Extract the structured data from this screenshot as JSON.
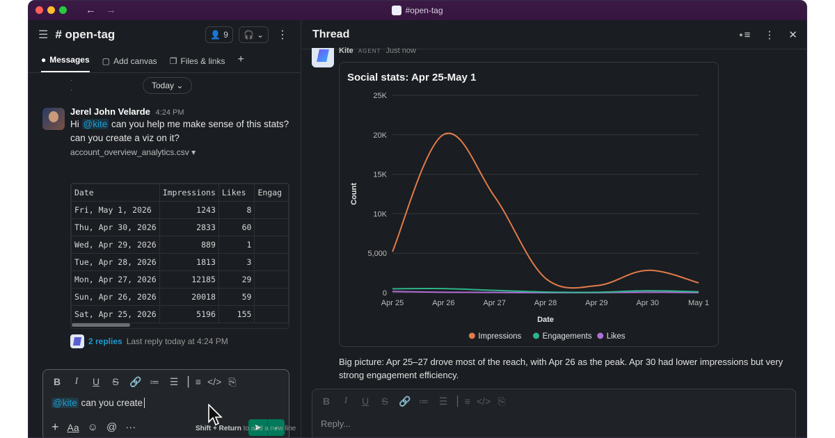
{
  "window": {
    "title": "#open-tag"
  },
  "channel": {
    "name": "# open-tag",
    "member_count": "9",
    "tabs": [
      {
        "label": "Messages"
      },
      {
        "label": "Add canvas"
      },
      {
        "label": "Files & links"
      }
    ],
    "date_divider": "Today"
  },
  "message": {
    "author": "Jerel John Velarde",
    "time": "4:24 PM",
    "text_before": "Hi ",
    "mention": "@kite",
    "text_after": " can you help me make sense of this stats? can you create a viz on it?",
    "file_name": "account_overview_analytics.csv",
    "table": {
      "headers": [
        "Date",
        "Impressions",
        "Likes",
        "Engag"
      ],
      "rows": [
        [
          "Fri, May 1, 2026",
          "1243",
          "8",
          ""
        ],
        [
          "Thu, Apr 30, 2026",
          "2833",
          "60",
          ""
        ],
        [
          "Wed, Apr 29, 2026",
          "889",
          "1",
          ""
        ],
        [
          "Tue, Apr 28, 2026",
          "1813",
          "3",
          ""
        ],
        [
          "Mon, Apr 27, 2026",
          "12185",
          "29",
          ""
        ],
        [
          "Sun, Apr 26, 2026",
          "20018",
          "59",
          ""
        ],
        [
          "Sat, Apr 25, 2026",
          "5196",
          "155",
          ""
        ]
      ]
    },
    "replies_label": "2 replies",
    "last_reply": "Last reply today at 4:24 PM"
  },
  "composer": {
    "mention": "@kite",
    "text": " can you create",
    "hint_keys": "Shift + Return",
    "hint_text": " to add a new line"
  },
  "thread": {
    "title": "Thread",
    "author": "Kite",
    "badge": "AGENT",
    "time": "Just now",
    "summary": "Big picture: Apr 25–27 drove most of the reach, with Apr 26 as the peak. Apr 30 had lower impressions but very strong engagement efficiency.",
    "reply_placeholder": "Reply..."
  },
  "chart_data": {
    "type": "line",
    "title": "Social stats: Apr 25-May 1",
    "xlabel": "Date",
    "ylabel": "Count",
    "categories": [
      "Apr 25",
      "Apr 26",
      "Apr 27",
      "Apr 28",
      "Apr 29",
      "Apr 30",
      "May 1"
    ],
    "y_ticks": [
      "0",
      "5,000",
      "10K",
      "15K",
      "20K",
      "25K"
    ],
    "ylim": [
      0,
      25000
    ],
    "grid": true,
    "legend_position": "bottom",
    "series": [
      {
        "name": "Impressions",
        "color": "#e07b4a",
        "values": [
          5196,
          20018,
          12185,
          1813,
          889,
          2833,
          1243
        ]
      },
      {
        "name": "Engagements",
        "color": "#2db38a",
        "values": [
          500,
          520,
          300,
          90,
          60,
          250,
          120
        ]
      },
      {
        "name": "Likes",
        "color": "#b06fd6",
        "values": [
          155,
          59,
          29,
          3,
          1,
          60,
          8
        ]
      }
    ]
  }
}
